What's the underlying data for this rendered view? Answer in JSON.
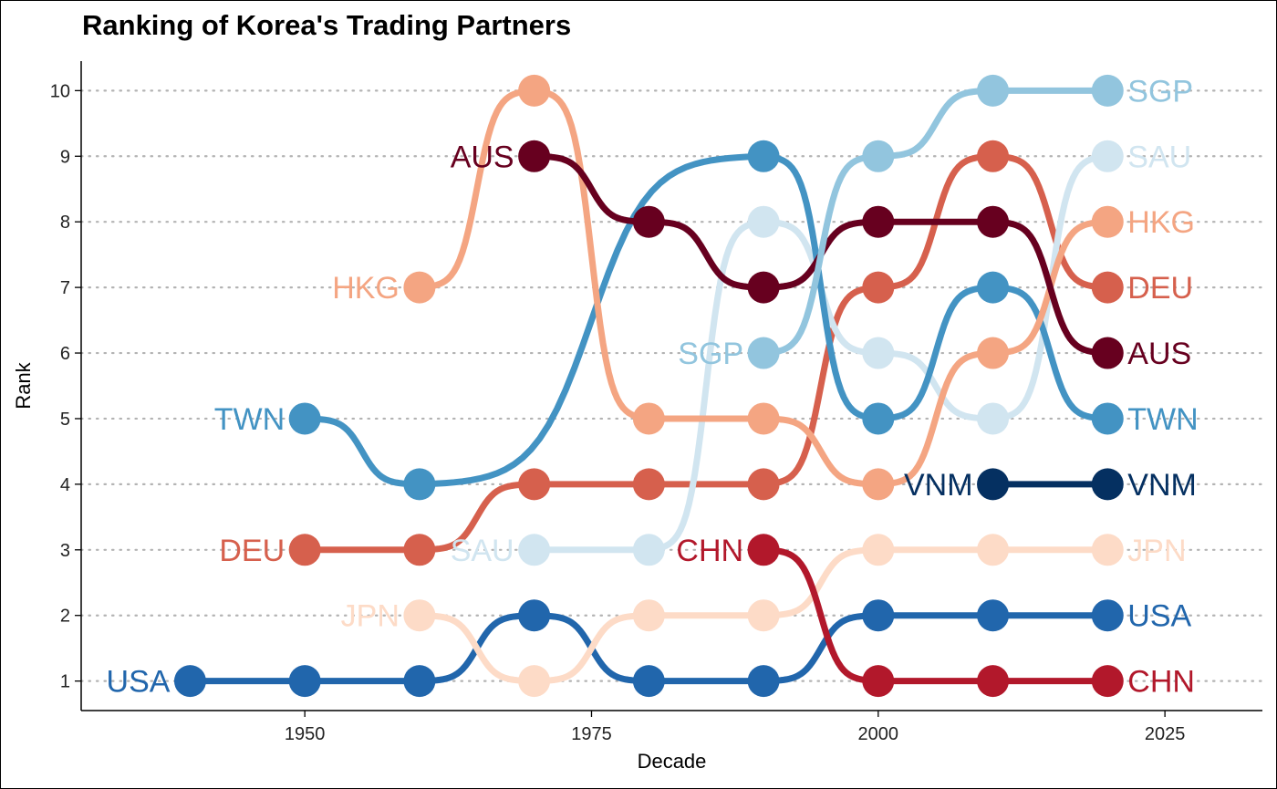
{
  "chart_data": {
    "type": "line",
    "title": "Ranking of Korea's Trading Partners",
    "xlabel": "Decade",
    "ylabel": "Rank",
    "xlim": [
      1930.5,
      2033.5
    ],
    "ylim": [
      0.55,
      10.45
    ],
    "x_ticks": [
      1950,
      1975,
      2000,
      2025
    ],
    "y_ticks": [
      1,
      2,
      3,
      4,
      5,
      6,
      7,
      8,
      9,
      10
    ],
    "grid": "horizontal dotted",
    "series": [
      {
        "name": "USA",
        "color": "#2166AC",
        "points": [
          [
            1940,
            1
          ],
          [
            1950,
            1
          ],
          [
            1960,
            1
          ],
          [
            1970,
            2
          ],
          [
            1980,
            1
          ],
          [
            1990,
            1
          ],
          [
            2000,
            2
          ],
          [
            2010,
            2
          ],
          [
            2020,
            2
          ]
        ]
      },
      {
        "name": "JPN",
        "color": "#FDDBC7",
        "points": [
          [
            1960,
            2
          ],
          [
            1970,
            1
          ],
          [
            1980,
            2
          ],
          [
            1990,
            2
          ],
          [
            2000,
            3
          ],
          [
            2010,
            3
          ],
          [
            2020,
            3
          ]
        ]
      },
      {
        "name": "DEU",
        "color": "#D6604D",
        "points": [
          [
            1950,
            3
          ],
          [
            1960,
            3
          ],
          [
            1970,
            4
          ],
          [
            1980,
            4
          ],
          [
            1990,
            4
          ],
          [
            2000,
            7
          ],
          [
            2010,
            9
          ],
          [
            2020,
            7
          ]
        ]
      },
      {
        "name": "SAU",
        "color": "#D1E5F0",
        "points": [
          [
            1970,
            3
          ],
          [
            1980,
            3
          ],
          [
            1990,
            8
          ],
          [
            2000,
            6
          ],
          [
            2010,
            5
          ],
          [
            2020,
            9
          ]
        ]
      },
      {
        "name": "CHN",
        "color": "#B2182B",
        "points": [
          [
            1990,
            3
          ],
          [
            2000,
            1
          ],
          [
            2010,
            1
          ],
          [
            2020,
            1
          ]
        ]
      },
      {
        "name": "TWN",
        "color": "#4393C3",
        "points": [
          [
            1950,
            5
          ],
          [
            1960,
            4
          ],
          [
            1990,
            9
          ],
          [
            2000,
            5
          ],
          [
            2010,
            7
          ],
          [
            2020,
            5
          ]
        ]
      },
      {
        "name": "HKG",
        "color": "#F4A582",
        "points": [
          [
            1960,
            7
          ],
          [
            1970,
            10
          ],
          [
            1980,
            5
          ],
          [
            1990,
            5
          ],
          [
            2000,
            4
          ],
          [
            2010,
            6
          ],
          [
            2020,
            8
          ]
        ]
      },
      {
        "name": "AUS",
        "color": "#67001F",
        "points": [
          [
            1970,
            9
          ],
          [
            1980,
            8
          ],
          [
            1990,
            7
          ],
          [
            2000,
            8
          ],
          [
            2010,
            8
          ],
          [
            2020,
            6
          ]
        ]
      },
      {
        "name": "SGP",
        "color": "#92C5DE",
        "points": [
          [
            1990,
            6
          ],
          [
            2000,
            9
          ],
          [
            2010,
            10
          ],
          [
            2020,
            10
          ]
        ]
      },
      {
        "name": "VNM",
        "color": "#053061",
        "points": [
          [
            2010,
            4
          ],
          [
            2020,
            4
          ]
        ]
      }
    ]
  }
}
